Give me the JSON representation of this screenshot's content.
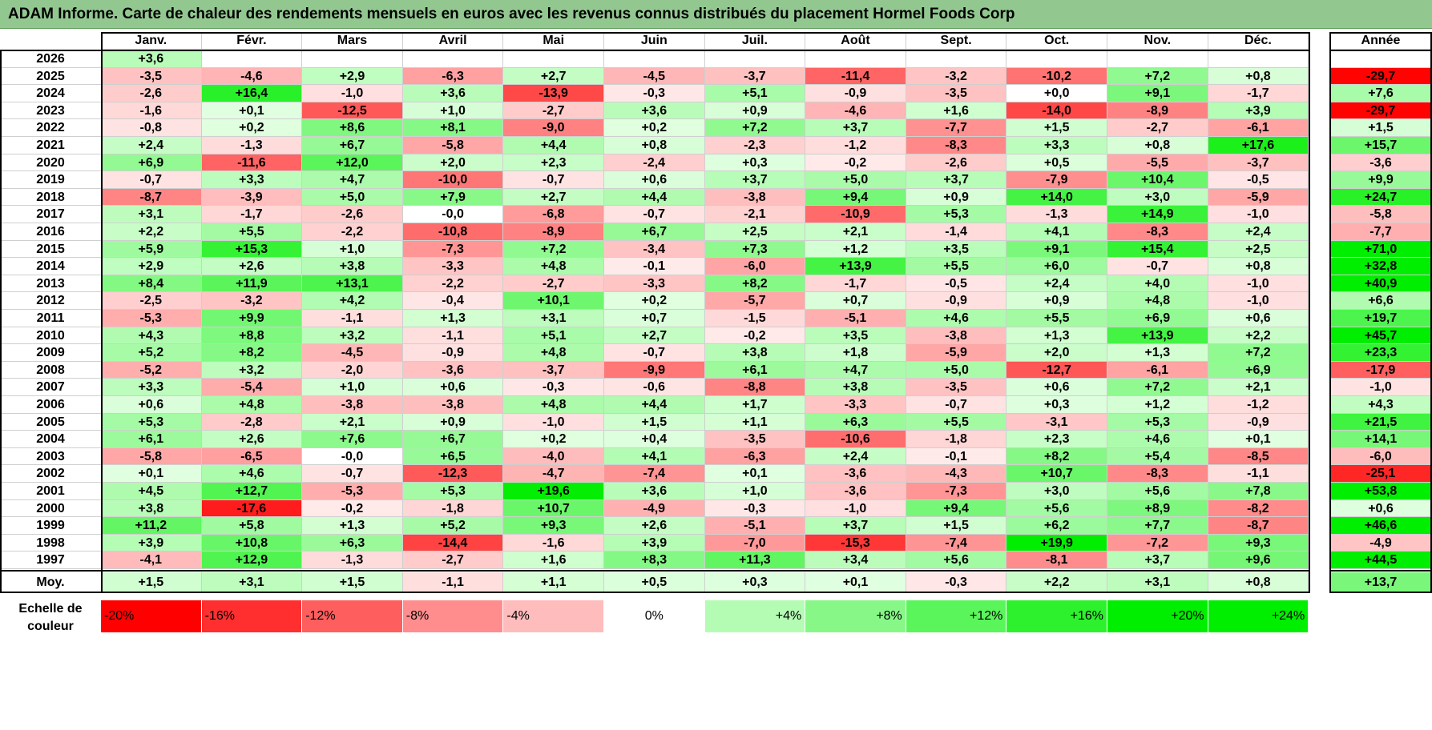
{
  "title": "ADAM Informe. Carte de chaleur des rendements mensuels en euros avec les revenus connus distribués du placement Hormel Foods Corp",
  "chart_data": {
    "type": "heatmap",
    "title": "ADAM Informe. Carte de chaleur des rendements mensuels en euros avec les revenus connus distribués du placement Hormel Foods Corp",
    "columns": [
      "Janv.",
      "Févr.",
      "Mars",
      "Avril",
      "Mai",
      "Juin",
      "Juil.",
      "Août",
      "Sept.",
      "Oct.",
      "Nov.",
      "Déc."
    ],
    "annual_column_label": "Année",
    "rows": [
      {
        "year": "2026",
        "values": [
          "+3,6",
          "",
          "",
          "",
          "",
          "",
          "",
          "",
          "",
          "",
          "",
          ""
        ],
        "annual": ""
      },
      {
        "year": "2025",
        "values": [
          "-3,5",
          "-4,6",
          "+2,9",
          "-6,3",
          "+2,7",
          "-4,5",
          "-3,7",
          "-11,4",
          "-3,2",
          "-10,2",
          "+7,2",
          "+0,8"
        ],
        "annual": "-29,7"
      },
      {
        "year": "2024",
        "values": [
          "-2,6",
          "+16,4",
          "-1,0",
          "+3,6",
          "-13,9",
          "-0,3",
          "+5,1",
          "-0,9",
          "-3,5",
          "+0,0",
          "+9,1",
          "-1,7"
        ],
        "annual": "+7,6"
      },
      {
        "year": "2023",
        "values": [
          "-1,6",
          "+0,1",
          "-12,5",
          "+1,0",
          "-2,7",
          "+3,6",
          "+0,9",
          "-4,6",
          "+1,6",
          "-14,0",
          "-8,9",
          "+3,9"
        ],
        "annual": "-29,7"
      },
      {
        "year": "2022",
        "values": [
          "-0,8",
          "+0,2",
          "+8,6",
          "+8,1",
          "-9,0",
          "+0,2",
          "+7,2",
          "+3,7",
          "-7,7",
          "+1,5",
          "-2,7",
          "-6,1"
        ],
        "annual": "+1,5"
      },
      {
        "year": "2021",
        "values": [
          "+2,4",
          "-1,3",
          "+6,7",
          "-5,8",
          "+4,4",
          "+0,8",
          "-2,3",
          "-1,2",
          "-8,3",
          "+3,3",
          "+0,8",
          "+17,6"
        ],
        "annual": "+15,7"
      },
      {
        "year": "2020",
        "values": [
          "+6,9",
          "-11,6",
          "+12,0",
          "+2,0",
          "+2,3",
          "-2,4",
          "+0,3",
          "-0,2",
          "-2,6",
          "+0,5",
          "-5,5",
          "-3,7"
        ],
        "annual": "-3,6"
      },
      {
        "year": "2019",
        "values": [
          "-0,7",
          "+3,3",
          "+4,7",
          "-10,0",
          "-0,7",
          "+0,6",
          "+3,7",
          "+5,0",
          "+3,7",
          "-7,9",
          "+10,4",
          "-0,5"
        ],
        "annual": "+9,9"
      },
      {
        "year": "2018",
        "values": [
          "-8,7",
          "-3,9",
          "+5,0",
          "+7,9",
          "+2,7",
          "+4,4",
          "-3,8",
          "+9,4",
          "+0,9",
          "+14,0",
          "+3,0",
          "-5,9"
        ],
        "annual": "+24,7"
      },
      {
        "year": "2017",
        "values": [
          "+3,1",
          "-1,7",
          "-2,6",
          "-0,0",
          "-6,8",
          "-0,7",
          "-2,1",
          "-10,9",
          "+5,3",
          "-1,3",
          "+14,9",
          "-1,0"
        ],
        "annual": "-5,8"
      },
      {
        "year": "2016",
        "values": [
          "+2,2",
          "+5,5",
          "-2,2",
          "-10,8",
          "-8,9",
          "+6,7",
          "+2,5",
          "+2,1",
          "-1,4",
          "+4,1",
          "-8,3",
          "+2,4"
        ],
        "annual": "-7,7"
      },
      {
        "year": "2015",
        "values": [
          "+5,9",
          "+15,3",
          "+1,0",
          "-7,3",
          "+7,2",
          "-3,4",
          "+7,3",
          "+1,2",
          "+3,5",
          "+9,1",
          "+15,4",
          "+2,5"
        ],
        "annual": "+71,0"
      },
      {
        "year": "2014",
        "values": [
          "+2,9",
          "+2,6",
          "+3,8",
          "-3,3",
          "+4,8",
          "-0,1",
          "-6,0",
          "+13,9",
          "+5,5",
          "+6,0",
          "-0,7",
          "+0,8"
        ],
        "annual": "+32,8"
      },
      {
        "year": "2013",
        "values": [
          "+8,4",
          "+11,9",
          "+13,1",
          "-2,2",
          "-2,7",
          "-3,3",
          "+8,2",
          "-1,7",
          "-0,5",
          "+2,4",
          "+4,0",
          "-1,0"
        ],
        "annual": "+40,9"
      },
      {
        "year": "2012",
        "values": [
          "-2,5",
          "-3,2",
          "+4,2",
          "-0,4",
          "+10,1",
          "+0,2",
          "-5,7",
          "+0,7",
          "-0,9",
          "+0,9",
          "+4,8",
          "-1,0"
        ],
        "annual": "+6,6"
      },
      {
        "year": "2011",
        "values": [
          "-5,3",
          "+9,9",
          "-1,1",
          "+1,3",
          "+3,1",
          "+0,7",
          "-1,5",
          "-5,1",
          "+4,6",
          "+5,5",
          "+6,9",
          "+0,6"
        ],
        "annual": "+19,7"
      },
      {
        "year": "2010",
        "values": [
          "+4,3",
          "+8,8",
          "+3,2",
          "-1,1",
          "+5,1",
          "+2,7",
          "-0,2",
          "+3,5",
          "-3,8",
          "+1,3",
          "+13,9",
          "+2,2"
        ],
        "annual": "+45,7"
      },
      {
        "year": "2009",
        "values": [
          "+5,2",
          "+8,2",
          "-4,5",
          "-0,9",
          "+4,8",
          "-0,7",
          "+3,8",
          "+1,8",
          "-5,9",
          "+2,0",
          "+1,3",
          "+7,2"
        ],
        "annual": "+23,3"
      },
      {
        "year": "2008",
        "values": [
          "-5,2",
          "+3,2",
          "-2,0",
          "-3,6",
          "-3,7",
          "-9,9",
          "+6,1",
          "+4,7",
          "+5,0",
          "-12,7",
          "-6,1",
          "+6,9"
        ],
        "annual": "-17,9"
      },
      {
        "year": "2007",
        "values": [
          "+3,3",
          "-5,4",
          "+1,0",
          "+0,6",
          "-0,3",
          "-0,6",
          "-8,8",
          "+3,8",
          "-3,5",
          "+0,6",
          "+7,2",
          "+2,1"
        ],
        "annual": "-1,0"
      },
      {
        "year": "2006",
        "values": [
          "+0,6",
          "+4,8",
          "-3,8",
          "-3,8",
          "+4,8",
          "+4,4",
          "+1,7",
          "-3,3",
          "-0,7",
          "+0,3",
          "+1,2",
          "-1,2"
        ],
        "annual": "+4,3"
      },
      {
        "year": "2005",
        "values": [
          "+5,3",
          "-2,8",
          "+2,1",
          "+0,9",
          "-1,0",
          "+1,5",
          "+1,1",
          "+6,3",
          "+5,5",
          "-3,1",
          "+5,3",
          "-0,9"
        ],
        "annual": "+21,5"
      },
      {
        "year": "2004",
        "values": [
          "+6,1",
          "+2,6",
          "+7,6",
          "+6,7",
          "+0,2",
          "+0,4",
          "-3,5",
          "-10,6",
          "-1,8",
          "+2,3",
          "+4,6",
          "+0,1"
        ],
        "annual": "+14,1"
      },
      {
        "year": "2003",
        "values": [
          "-5,8",
          "-6,5",
          "-0,0",
          "+6,5",
          "-4,0",
          "+4,1",
          "-6,3",
          "+2,4",
          "-0,1",
          "+8,2",
          "+5,4",
          "-8,5"
        ],
        "annual": "-6,0"
      },
      {
        "year": "2002",
        "values": [
          "+0,1",
          "+4,6",
          "-0,7",
          "-12,3",
          "-4,7",
          "-7,4",
          "+0,1",
          "-3,6",
          "-4,3",
          "+10,7",
          "-8,3",
          "-1,1"
        ],
        "annual": "-25,1"
      },
      {
        "year": "2001",
        "values": [
          "+4,5",
          "+12,7",
          "-5,3",
          "+5,3",
          "+19,6",
          "+3,6",
          "+1,0",
          "-3,6",
          "-7,3",
          "+3,0",
          "+5,6",
          "+7,8"
        ],
        "annual": "+53,8"
      },
      {
        "year": "2000",
        "values": [
          "+3,8",
          "-17,6",
          "-0,2",
          "-1,8",
          "+10,7",
          "-4,9",
          "-0,3",
          "-1,0",
          "+9,4",
          "+5,6",
          "+8,9",
          "-8,2"
        ],
        "annual": "+0,6"
      },
      {
        "year": "1999",
        "values": [
          "+11,2",
          "+5,8",
          "+1,3",
          "+5,2",
          "+9,3",
          "+2,6",
          "-5,1",
          "+3,7",
          "+1,5",
          "+6,2",
          "+7,7",
          "-8,7"
        ],
        "annual": "+46,6"
      },
      {
        "year": "1998",
        "values": [
          "+3,9",
          "+10,8",
          "+6,3",
          "-14,4",
          "-1,6",
          "+3,9",
          "-7,0",
          "-15,3",
          "-7,4",
          "+19,9",
          "-7,2",
          "+9,3"
        ],
        "annual": "-4,9"
      },
      {
        "year": "1997",
        "values": [
          "-4,1",
          "+12,9",
          "-1,3",
          "-2,7",
          "+1,6",
          "+8,3",
          "+11,3",
          "+3,4",
          "+5,6",
          "-8,1",
          "+3,7",
          "+9,6"
        ],
        "annual": "+44,5"
      }
    ],
    "average": {
      "label": "Moy.",
      "values": [
        "+1,5",
        "+3,1",
        "+1,5",
        "-1,1",
        "+1,1",
        "+0,5",
        "+0,3",
        "+0,1",
        "-0,3",
        "+2,2",
        "+3,1",
        "+0,8"
      ],
      "annual": "+13,7"
    },
    "scale": {
      "label_line1": "Echelle de",
      "label_line2": "couleur",
      "steps": [
        "-20%",
        "-16%",
        "-12%",
        "-8%",
        "-4%",
        "0%",
        "+4%",
        "+8%",
        "+12%",
        "+16%",
        "+20%",
        "+24%"
      ],
      "step_values": [
        -20,
        -16,
        -12,
        -8,
        -4,
        0,
        4,
        8,
        12,
        16,
        20,
        24
      ]
    }
  },
  "colors": {
    "title_bg": "#92c890",
    "negative_max": "#ff0000",
    "positive_max": "#00ee00",
    "neutral": "#ffffff"
  }
}
